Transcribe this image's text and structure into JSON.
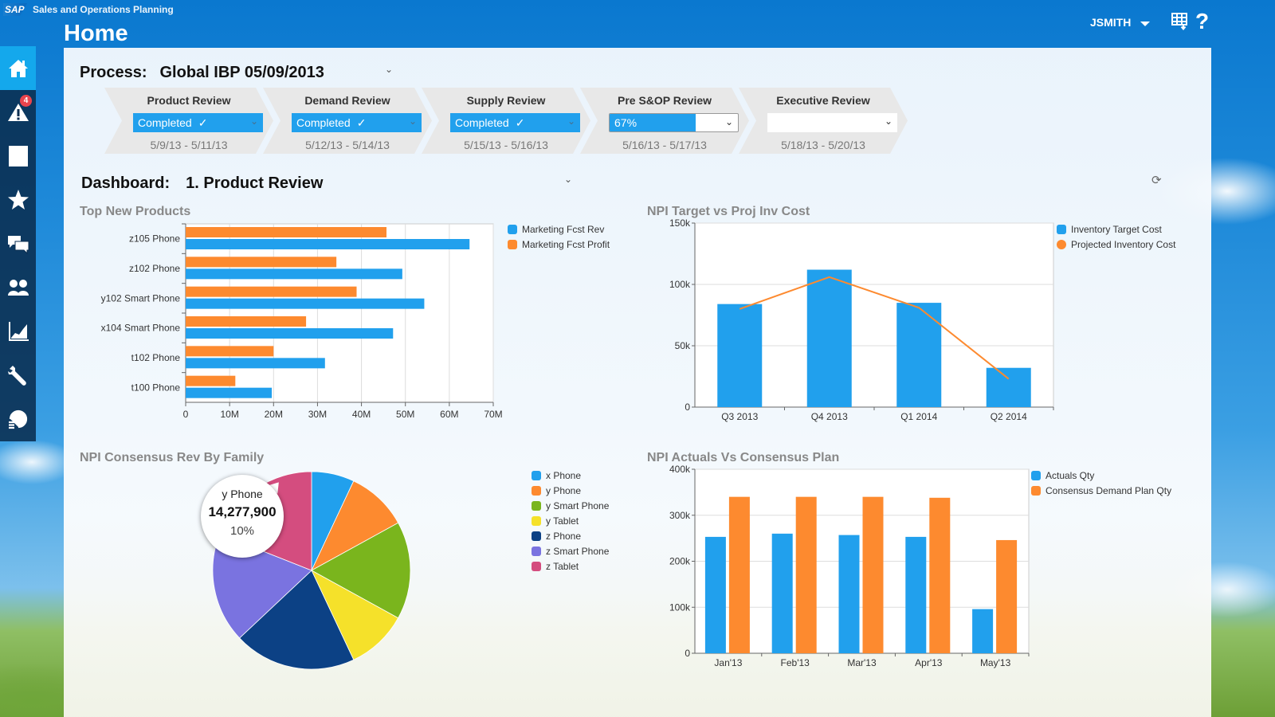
{
  "header": {
    "logo_text": "SAP",
    "app_title": "Sales and Operations Planning",
    "page_title": "Home",
    "user": "JSMITH",
    "icons": [
      "grid-download-icon",
      "help-icon"
    ],
    "help_glyph": "?"
  },
  "sidebar": {
    "items": [
      {
        "name": "home",
        "icon": "home-icon",
        "active": true
      },
      {
        "name": "alerts",
        "icon": "warning-icon",
        "badge": "4"
      },
      {
        "name": "tasks",
        "icon": "checklist-icon"
      },
      {
        "name": "favorites",
        "icon": "star-icon"
      },
      {
        "name": "collaboration",
        "icon": "chat-icon"
      },
      {
        "name": "users",
        "icon": "users-icon"
      },
      {
        "name": "analytics",
        "icon": "area-chart-icon"
      },
      {
        "name": "tools",
        "icon": "wrench-icon"
      },
      {
        "name": "history",
        "icon": "history-icon"
      }
    ]
  },
  "process": {
    "label": "Process:",
    "value": "Global IBP 05/09/2013",
    "steps": [
      {
        "title": "Product Review",
        "status": "Completed",
        "check": "✓",
        "dates": "5/9/13 - 5/11/13"
      },
      {
        "title": "Demand Review",
        "status": "Completed",
        "check": "✓",
        "dates": "5/12/13 - 5/14/13"
      },
      {
        "title": "Supply Review",
        "status": "Completed",
        "check": "✓",
        "dates": "5/15/13 - 5/16/13"
      },
      {
        "title": "Pre S&OP Review",
        "status": "67%",
        "progress": 0.67,
        "dates": "5/16/13 - 5/17/13"
      },
      {
        "title": "Executive Review",
        "status": "",
        "dates": "5/18/13 - 5/20/13"
      }
    ]
  },
  "dashboard": {
    "label": "Dashboard:",
    "value": "1. Product Review"
  },
  "chevron_glyph": "⌄",
  "refresh_glyph": "⟳",
  "tooltip": {
    "label": "y Phone",
    "value": "14,277,900",
    "percent": "10%"
  },
  "colors": {
    "blue": "#21a0ed",
    "orange": "#fd8a2f",
    "green": "#7ab51d",
    "yellow": "#f5e12a",
    "navy": "#0c4185",
    "purple": "#7a73e0",
    "pink": "#d44d7f"
  },
  "chart_data": [
    {
      "id": "top-new-products",
      "type": "bar",
      "orientation": "horizontal",
      "title": "Top New Products",
      "categories": [
        "z105 Phone",
        "z102 Phone",
        "y102 Smart Phone",
        "x104 Smart Phone",
        "t102 Phone",
        "t100 Phone"
      ],
      "series": [
        {
          "name": "Marketing Fcst Rev",
          "color": "#21a0ed",
          "values": [
            64.6,
            49.3,
            54.3,
            47.2,
            31.7,
            19.6
          ]
        },
        {
          "name": "Marketing Fcst Profit",
          "color": "#fd8a2f",
          "values": [
            45.7,
            34.3,
            38.9,
            27.4,
            20.0,
            11.3
          ]
        }
      ],
      "xlim": [
        0,
        70
      ],
      "xticks": [
        "0",
        "10M",
        "20M",
        "30M",
        "40M",
        "50M",
        "60M",
        "70M"
      ],
      "unit": "M",
      "grid": true,
      "legend": "right"
    },
    {
      "id": "npi-target-vs-proj",
      "type": "bar",
      "title": "NPI Target vs Proj Inv Cost",
      "categories": [
        "Q3 2013",
        "Q4 2013",
        "Q1 2014",
        "Q2 2014"
      ],
      "series": [
        {
          "name": "Inventory Target Cost",
          "kind": "bar",
          "color": "#21a0ed",
          "values": [
            84,
            112,
            85,
            32
          ]
        },
        {
          "name": "Projected Inventory Cost",
          "kind": "line",
          "color": "#fd8a2f",
          "values": [
            80,
            106,
            81,
            23
          ]
        }
      ],
      "ylim": [
        0,
        150
      ],
      "yticks": [
        "0",
        "50k",
        "100k",
        "150k"
      ],
      "unit": "k",
      "grid": true,
      "legend": "right"
    },
    {
      "id": "npi-consensus-rev-by-family",
      "type": "pie",
      "title": "NPI Consensus Rev By Family",
      "categories": [
        "x Phone",
        "y Phone",
        "y Smart Phone",
        "y Tablet",
        "z Phone",
        "z Smart Phone",
        "z Tablet"
      ],
      "values": [
        7,
        10,
        16,
        10,
        20,
        18,
        19
      ],
      "colors": [
        "#21a0ed",
        "#fd8a2f",
        "#7ab51d",
        "#f5e12a",
        "#0c4185",
        "#7a73e0",
        "#d44d7f"
      ],
      "unit": "%",
      "legend": "right"
    },
    {
      "id": "npi-actuals-vs-consensus",
      "type": "bar",
      "title": "NPI Actuals Vs Consensus Plan",
      "categories": [
        "Jan'13",
        "Feb'13",
        "Mar'13",
        "Apr'13",
        "May'13"
      ],
      "series": [
        {
          "name": "Actuals Qty",
          "color": "#21a0ed",
          "values": [
            253,
            260,
            257,
            253,
            96
          ]
        },
        {
          "name": "Consensus Demand Plan Qty",
          "color": "#fd8a2f",
          "values": [
            340,
            340,
            340,
            338,
            246
          ]
        }
      ],
      "ylim": [
        0,
        400
      ],
      "yticks": [
        "0",
        "100k",
        "200k",
        "300k",
        "400k"
      ],
      "unit": "k",
      "grid": true,
      "legend": "right"
    }
  ]
}
